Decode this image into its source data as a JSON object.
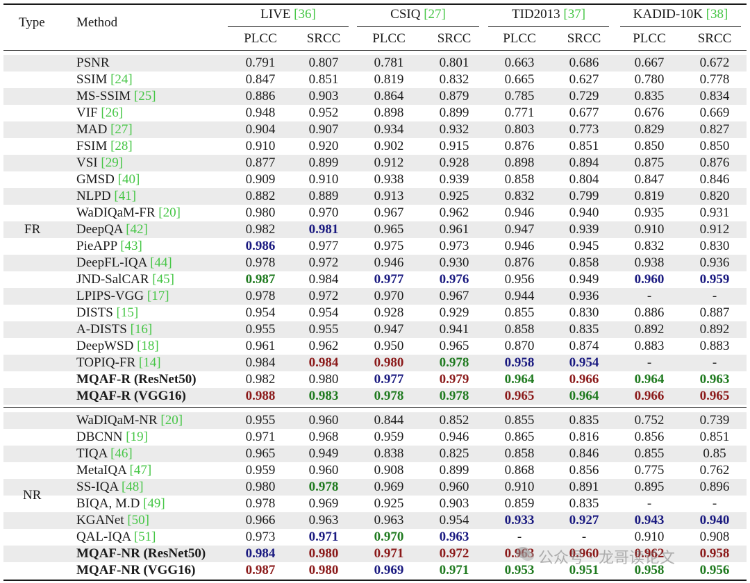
{
  "header": {
    "type": "Type",
    "method": "Method",
    "datasets": [
      {
        "name": "LIVE",
        "cite": "[36]"
      },
      {
        "name": "CSIQ",
        "cite": "[27]"
      },
      {
        "name": "TID2013",
        "cite": "[37]"
      },
      {
        "name": "KADID-10K",
        "cite": "[38]"
      }
    ],
    "metrics": [
      "PLCC",
      "SRCC",
      "PLCC",
      "SRCC",
      "PLCC",
      "SRCC",
      "PLCC",
      "SRCC"
    ]
  },
  "groups": [
    {
      "type": "FR",
      "rows": [
        {
          "method": "PSNR",
          "cite": "",
          "vals": [
            "0.791",
            "0.807",
            "0.781",
            "0.801",
            "0.663",
            "0.686",
            "0.667",
            "0.672"
          ]
        },
        {
          "method": "SSIM",
          "cite": "[24]",
          "vals": [
            "0.847",
            "0.851",
            "0.819",
            "0.832",
            "0.665",
            "0.627",
            "0.780",
            "0.778"
          ]
        },
        {
          "method": "MS-SSIM",
          "cite": "[25]",
          "vals": [
            "0.886",
            "0.903",
            "0.864",
            "0.879",
            "0.785",
            "0.729",
            "0.835",
            "0.834"
          ]
        },
        {
          "method": "VIF",
          "cite": "[26]",
          "vals": [
            "0.948",
            "0.952",
            "0.898",
            "0.899",
            "0.771",
            "0.677",
            "0.676",
            "0.669"
          ]
        },
        {
          "method": "MAD",
          "cite": "[27]",
          "vals": [
            "0.904",
            "0.907",
            "0.934",
            "0.932",
            "0.803",
            "0.773",
            "0.829",
            "0.827"
          ]
        },
        {
          "method": "FSIM",
          "cite": "[28]",
          "vals": [
            "0.910",
            "0.920",
            "0.902",
            "0.915",
            "0.876",
            "0.851",
            "0.850",
            "0.850"
          ]
        },
        {
          "method": "VSI",
          "cite": "[29]",
          "vals": [
            "0.877",
            "0.899",
            "0.912",
            "0.928",
            "0.898",
            "0.894",
            "0.875",
            "0.876"
          ]
        },
        {
          "method": "GMSD",
          "cite": "[40]",
          "vals": [
            "0.909",
            "0.910",
            "0.938",
            "0.939",
            "0.858",
            "0.804",
            "0.847",
            "0.846"
          ]
        },
        {
          "method": "NLPD",
          "cite": "[41]",
          "vals": [
            "0.882",
            "0.889",
            "0.913",
            "0.925",
            "0.832",
            "0.799",
            "0.819",
            "0.820"
          ]
        },
        {
          "method": "WaDIQaM-FR",
          "cite": "[20]",
          "vals": [
            "0.980",
            "0.970",
            "0.967",
            "0.962",
            "0.946",
            "0.940",
            "0.935",
            "0.931"
          ]
        },
        {
          "method": "DeepQA",
          "cite": "[42]",
          "vals": [
            "0.982",
            "0.981",
            "0.965",
            "0.961",
            "0.947",
            "0.939",
            "0.910",
            "0.912"
          ],
          "hl": {
            "1": "blue"
          }
        },
        {
          "method": "PieAPP",
          "cite": "[43]",
          "vals": [
            "0.986",
            "0.977",
            "0.975",
            "0.973",
            "0.946",
            "0.945",
            "0.832",
            "0.830"
          ],
          "hl": {
            "0": "blue"
          }
        },
        {
          "method": "DeepFL-IQA",
          "cite": "[44]",
          "vals": [
            "0.978",
            "0.972",
            "0.946",
            "0.930",
            "0.876",
            "0.858",
            "0.938",
            "0.936"
          ]
        },
        {
          "method": "JND-SalCAR",
          "cite": "[45]",
          "vals": [
            "0.987",
            "0.984",
            "0.977",
            "0.976",
            "0.956",
            "0.949",
            "0.960",
            "0.959"
          ],
          "hl": {
            "0": "green",
            "2": "blue",
            "3": "blue",
            "6": "blue",
            "7": "blue"
          }
        },
        {
          "method": "LPIPS-VGG",
          "cite": "[17]",
          "vals": [
            "0.978",
            "0.972",
            "0.970",
            "0.967",
            "0.944",
            "0.936",
            "-",
            "-"
          ]
        },
        {
          "method": "DISTS",
          "cite": "[15]",
          "vals": [
            "0.954",
            "0.954",
            "0.928",
            "0.929",
            "0.855",
            "0.830",
            "0.886",
            "0.887"
          ]
        },
        {
          "method": "A-DISTS",
          "cite": "[16]",
          "vals": [
            "0.955",
            "0.955",
            "0.947",
            "0.941",
            "0.858",
            "0.835",
            "0.892",
            "0.892"
          ]
        },
        {
          "method": "DeepWSD",
          "cite": "[18]",
          "vals": [
            "0.961",
            "0.962",
            "0.950",
            "0.965",
            "0.870",
            "0.874",
            "0.883",
            "0.883"
          ]
        },
        {
          "method": "TOPIQ-FR",
          "cite": "[14]",
          "vals": [
            "0.984",
            "0.984",
            "0.980",
            "0.978",
            "0.958",
            "0.954",
            "-",
            "-"
          ],
          "hl": {
            "1": "red",
            "2": "red",
            "3": "green",
            "4": "blue",
            "5": "blue"
          }
        },
        {
          "method": "MQAF-R (ResNet50)",
          "cite": "",
          "bold": true,
          "vals": [
            "0.982",
            "0.980",
            "0.977",
            "0.979",
            "0.964",
            "0.966",
            "0.964",
            "0.963"
          ],
          "hl": {
            "2": "blue",
            "3": "red",
            "4": "green",
            "5": "red",
            "6": "green",
            "7": "green"
          }
        },
        {
          "method": "MQAF-R (VGG16)",
          "cite": "",
          "bold": true,
          "vals": [
            "0.988",
            "0.983",
            "0.978",
            "0.978",
            "0.965",
            "0.964",
            "0.966",
            "0.965"
          ],
          "hl": {
            "0": "red",
            "1": "green",
            "2": "green",
            "3": "green",
            "4": "red",
            "5": "green",
            "6": "red",
            "7": "red"
          }
        }
      ]
    },
    {
      "type": "NR",
      "rows": [
        {
          "method": "WaDIQaM-NR",
          "cite": "[20]",
          "vals": [
            "0.955",
            "0.960",
            "0.844",
            "0.852",
            "0.855",
            "0.835",
            "0.752",
            "0.739"
          ]
        },
        {
          "method": "DBCNN",
          "cite": "[19]",
          "vals": [
            "0.971",
            "0.968",
            "0.959",
            "0.946",
            "0.865",
            "0.816",
            "0.856",
            "0.851"
          ]
        },
        {
          "method": "TIQA",
          "cite": "[46]",
          "vals": [
            "0.965",
            "0.949",
            "0.838",
            "0.825",
            "0.858",
            "0.846",
            "0.855",
            "0.85"
          ]
        },
        {
          "method": "MetaIQA",
          "cite": "[47]",
          "vals": [
            "0.959",
            "0.960",
            "0.908",
            "0.899",
            "0.868",
            "0.856",
            "0.775",
            "0.762"
          ]
        },
        {
          "method": "SS-IQA",
          "cite": "[48]",
          "vals": [
            "0.980",
            "0.978",
            "0.969",
            "0.960",
            "0.910",
            "0.891",
            "0.895",
            "0.896"
          ],
          "hl": {
            "1": "green"
          }
        },
        {
          "method": "BIQA, M.D",
          "cite": "[49]",
          "vals": [
            "0.978",
            "0.969",
            "0.925",
            "0.903",
            "0.859",
            "0.835",
            "-",
            "-"
          ]
        },
        {
          "method": "KGANet",
          "cite": "[50]",
          "vals": [
            "0.966",
            "0.963",
            "0.963",
            "0.954",
            "0.933",
            "0.927",
            "0.943",
            "0.940"
          ],
          "hl": {
            "4": "blue",
            "5": "blue",
            "6": "blue",
            "7": "blue"
          }
        },
        {
          "method": "QAL-IQA",
          "cite": "[51]",
          "vals": [
            "0.973",
            "0.971",
            "0.970",
            "0.963",
            "-",
            "-",
            "0.910",
            "0.908"
          ],
          "hl": {
            "1": "blue",
            "2": "green",
            "3": "blue"
          }
        },
        {
          "method": "MQAF-NR (ResNet50)",
          "cite": "",
          "bold": true,
          "vals": [
            "0.984",
            "0.980",
            "0.971",
            "0.972",
            "0.963",
            "0.960",
            "0.962",
            "0.958"
          ],
          "hl": {
            "0": "blue",
            "1": "red",
            "2": "red",
            "3": "red",
            "4": "red",
            "5": "red",
            "6": "red",
            "7": "red"
          }
        },
        {
          "method": "MQAF-NR (VGG16)",
          "cite": "",
          "bold": true,
          "vals": [
            "0.987",
            "0.980",
            "0.969",
            "0.971",
            "0.953",
            "0.951",
            "0.958",
            "0.956"
          ],
          "hl": {
            "0": "red",
            "1": "red",
            "2": "blue",
            "3": "green",
            "4": "green",
            "5": "green",
            "6": "green",
            "7": "green"
          }
        }
      ]
    }
  ],
  "watermark": {
    "text": "公众号 · 龙哥读论文",
    "icon": "wechat-icon"
  }
}
